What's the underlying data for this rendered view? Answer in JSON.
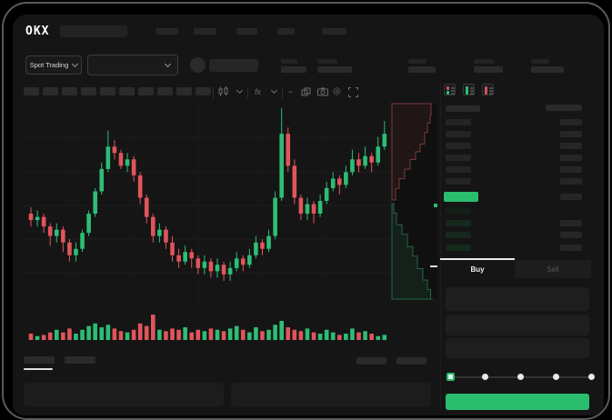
{
  "window": {
    "app": "OKX trading terminal"
  },
  "brand": {
    "logo_text": "OKX"
  },
  "header": {
    "market_selector": {
      "label": "Spot Trading"
    },
    "pair_dropdown": {
      "value": ""
    }
  },
  "toolbar": {
    "icons": [
      "candlestick-style",
      "chevron-down",
      "indicators",
      "chevron-down",
      "line-tool",
      "compare",
      "camera",
      "settings",
      "fullscreen"
    ],
    "glyphs": {
      "indicators": "fx",
      "line_tool": "~",
      "settings": "◎"
    }
  },
  "orderbook": {
    "view_toggles": [
      "book-both",
      "book-bids-only",
      "book-asks-only"
    ],
    "ask_rows": 6,
    "bid_rows": 4,
    "amount_rows_below_price": 3,
    "last_price_highlight": "green"
  },
  "trade_panel": {
    "tabs": [
      {
        "label": "Buy",
        "active": true
      },
      {
        "label": "Sell",
        "active": false
      }
    ],
    "fields": 3,
    "slider": {
      "stops": 5,
      "active_index": 0
    },
    "submit_button": {
      "label": "",
      "color": "#2abd6e"
    }
  },
  "colors": {
    "up": "#2ebd76",
    "down": "#e0555b",
    "accent_green": "#2abd6e",
    "background": "#151515",
    "placeholder": "#242424"
  },
  "chart_data": {
    "type": "candlestick",
    "price_range": [
      28,
      92
    ],
    "grid": true,
    "candles": [
      [
        57,
        55,
        59,
        53
      ],
      [
        55,
        56,
        58,
        53
      ],
      [
        56,
        53,
        57,
        51
      ],
      [
        53,
        50,
        54,
        47
      ],
      [
        50,
        52,
        54,
        48
      ],
      [
        52,
        48,
        53,
        45
      ],
      [
        48,
        44,
        49,
        42
      ],
      [
        44,
        46,
        48,
        42
      ],
      [
        46,
        51,
        52,
        45
      ],
      [
        51,
        57,
        58,
        50
      ],
      [
        57,
        64,
        65,
        56
      ],
      [
        64,
        71,
        73,
        63
      ],
      [
        71,
        78,
        83,
        70
      ],
      [
        78,
        76,
        80,
        74
      ],
      [
        76,
        72,
        77,
        71
      ],
      [
        72,
        74,
        76,
        70
      ],
      [
        74,
        69,
        75,
        67
      ],
      [
        69,
        62,
        70,
        60
      ],
      [
        62,
        56,
        63,
        54
      ],
      [
        56,
        50,
        57,
        48
      ],
      [
        50,
        52,
        54,
        48
      ],
      [
        52,
        48,
        53,
        46
      ],
      [
        48,
        44,
        50,
        42
      ],
      [
        44,
        42,
        46,
        40
      ],
      [
        42,
        45,
        47,
        41
      ],
      [
        45,
        43,
        46,
        40
      ],
      [
        43,
        40,
        44,
        38
      ],
      [
        40,
        42,
        44,
        38
      ],
      [
        42,
        39,
        43,
        37
      ],
      [
        39,
        41,
        43,
        37
      ],
      [
        41,
        38,
        42,
        36
      ],
      [
        38,
        40,
        42,
        36
      ],
      [
        40,
        43,
        45,
        39
      ],
      [
        43,
        41,
        44,
        39
      ],
      [
        41,
        44,
        46,
        40
      ],
      [
        44,
        48,
        50,
        43
      ],
      [
        48,
        46,
        49,
        44
      ],
      [
        46,
        50,
        52,
        45
      ],
      [
        50,
        62,
        64,
        49
      ],
      [
        62,
        82,
        90,
        61
      ],
      [
        82,
        72,
        84,
        70
      ],
      [
        72,
        62,
        74,
        60
      ],
      [
        62,
        57,
        63,
        55
      ],
      [
        57,
        60,
        62,
        55
      ],
      [
        60,
        57,
        61,
        54
      ],
      [
        57,
        61,
        63,
        56
      ],
      [
        61,
        65,
        67,
        60
      ],
      [
        65,
        68,
        70,
        64
      ],
      [
        68,
        66,
        69,
        63
      ],
      [
        66,
        70,
        72,
        65
      ],
      [
        70,
        74,
        77,
        69
      ],
      [
        74,
        72,
        76,
        70
      ],
      [
        72,
        75,
        78,
        71
      ],
      [
        75,
        73,
        76,
        70
      ],
      [
        73,
        78,
        81,
        72
      ],
      [
        78,
        82,
        86,
        77
      ]
    ],
    "volumes": [
      5,
      3,
      4,
      6,
      8,
      6,
      9,
      5,
      8,
      11,
      13,
      10,
      12,
      9,
      7,
      6,
      8,
      13,
      11,
      20,
      8,
      7,
      9,
      8,
      10,
      6,
      8,
      7,
      9,
      8,
      7,
      9,
      11,
      8,
      6,
      10,
      7,
      8,
      12,
      15,
      10,
      8,
      7,
      9,
      6,
      5,
      8,
      6,
      4,
      5,
      9,
      6,
      7,
      5,
      3,
      4
    ],
    "depth": {
      "asks": [
        [
          0,
          0.86
        ],
        [
          0.12,
          0.84
        ],
        [
          0.2,
          0.78
        ],
        [
          0.3,
          0.72
        ],
        [
          0.42,
          0.62
        ],
        [
          0.5,
          0.52
        ],
        [
          0.58,
          0.4
        ],
        [
          0.68,
          0.28
        ],
        [
          0.78,
          0.16
        ],
        [
          0.88,
          0.08
        ],
        [
          1,
          0.04
        ]
      ],
      "bids": [
        [
          0,
          0.04
        ],
        [
          0.1,
          0.1
        ],
        [
          0.22,
          0.22
        ],
        [
          0.32,
          0.34
        ],
        [
          0.45,
          0.46
        ],
        [
          0.55,
          0.56
        ],
        [
          0.68,
          0.68
        ],
        [
          0.8,
          0.78
        ],
        [
          0.9,
          0.85
        ],
        [
          1,
          0.9
        ]
      ]
    }
  }
}
